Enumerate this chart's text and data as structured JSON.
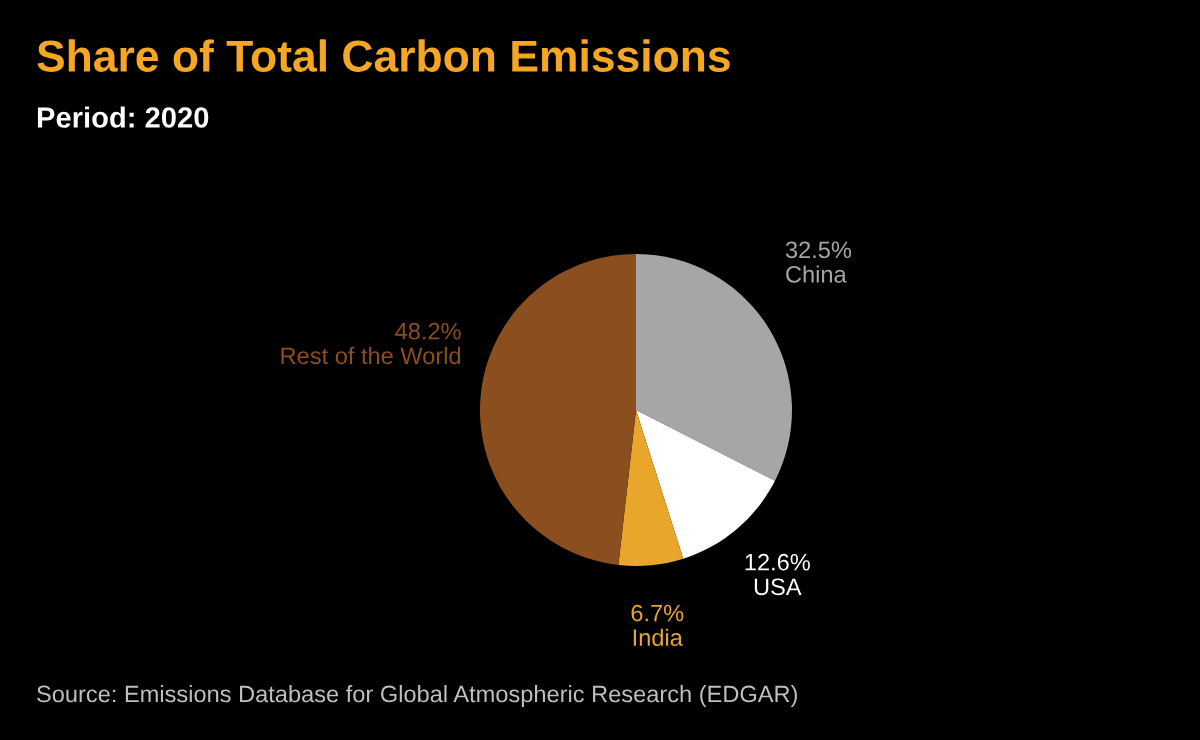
{
  "chart_data": {
    "type": "pie",
    "title": "Share of Total Carbon Emissions",
    "subtitle": "Period: 2020",
    "categories": [
      "China",
      "USA",
      "India",
      "Rest of the World"
    ],
    "values": [
      32.5,
      12.6,
      6.7,
      48.2
    ],
    "value_labels": [
      "32.5%",
      "12.6%",
      "6.7%",
      "48.2%"
    ],
    "colors": [
      "#a6a6a6",
      "#ffffff",
      "#e8a62a",
      "#8a4e1f"
    ],
    "annotations": [
      "Source: Emissions Database for Global Atmospheric Research (EDGAR)"
    ],
    "legend": false
  }
}
